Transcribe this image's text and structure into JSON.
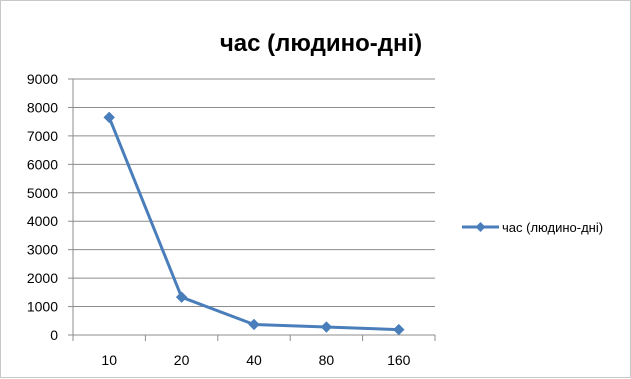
{
  "chart_data": {
    "type": "line",
    "title": "час (людино-дні)",
    "xlabel": "",
    "ylabel": "",
    "categories": [
      "10",
      "20",
      "40",
      "80",
      "160"
    ],
    "series": [
      {
        "name": "час (людино-дні)",
        "values": [
          7650,
          1330,
          370,
          280,
          190
        ],
        "color": "#4a7ebb"
      }
    ],
    "ylim": [
      0,
      9000
    ],
    "yticks": [
      "0",
      "1000",
      "2000",
      "3000",
      "4000",
      "5000",
      "6000",
      "7000",
      "8000",
      "9000"
    ],
    "grid": true,
    "legend_position": "right",
    "marker": "diamond"
  }
}
